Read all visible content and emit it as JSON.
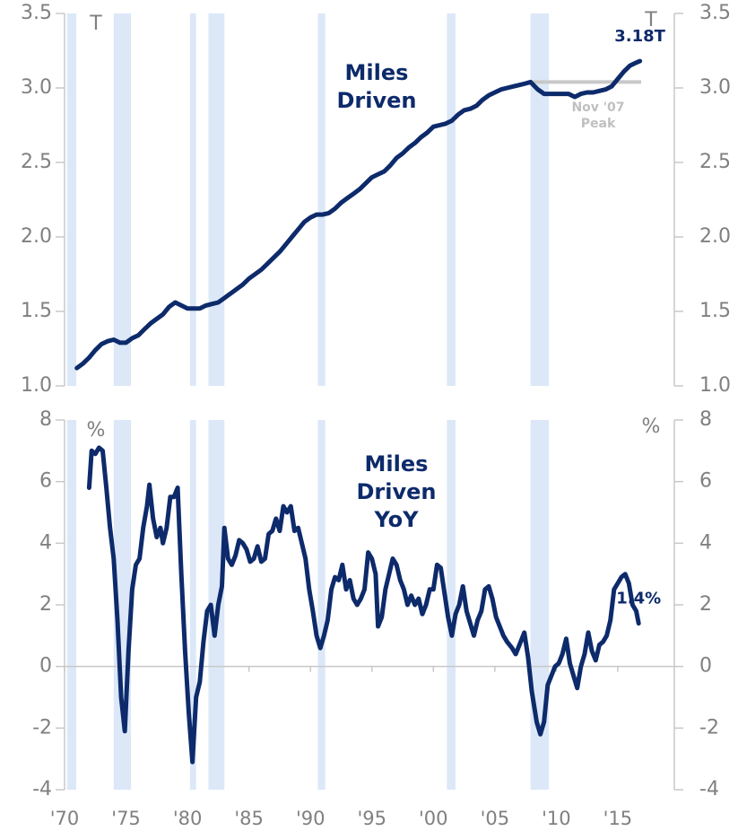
{
  "chart_data": [
    {
      "type": "line",
      "unit_label": "T",
      "xlim": [
        1970,
        2019.6
      ],
      "ylim": [
        1.0,
        3.5
      ],
      "yticks": [
        {
          "value": 1.0,
          "label": "1.0"
        },
        1.5,
        {
          "value": 2.0,
          "label": "2.0"
        },
        2.5,
        {
          "value": 3.0,
          "label": "3.0"
        },
        3.5
      ],
      "recessions": [
        [
          1970.2,
          1970.95
        ],
        [
          1974.0,
          1975.4
        ],
        [
          1980.2,
          1980.7
        ],
        [
          1981.7,
          1983.0
        ],
        [
          1990.6,
          1991.2
        ],
        [
          2001.1,
          2001.8
        ],
        [
          2007.9,
          2009.4
        ]
      ],
      "peak": {
        "label": "Nov '07 Peak",
        "value": 3.04,
        "x": [
          2007.9,
          2016.9
        ],
        "color": "#c8c8c8"
      },
      "series": [
        {
          "name": "Miles Driven",
          "color": "#0d2a6b",
          "end_label": "3.18T",
          "x": [
            1971,
            1971.5,
            1972,
            1972.5,
            1973,
            1973.5,
            1974,
            1974.5,
            1975,
            1975.5,
            1976,
            1976.5,
            1977,
            1977.5,
            1978,
            1978.5,
            1979,
            1979.5,
            1980,
            1980.5,
            1981,
            1981.5,
            1982,
            1982.5,
            1983,
            1983.5,
            1984,
            1984.5,
            1985,
            1985.5,
            1986,
            1986.5,
            1987,
            1987.5,
            1988,
            1988.5,
            1989,
            1989.5,
            1990,
            1990.5,
            1991,
            1991.5,
            1992,
            1992.5,
            1993,
            1993.5,
            1994,
            1994.5,
            1995,
            1995.5,
            1996,
            1996.5,
            1997,
            1997.5,
            1998,
            1998.5,
            1999,
            1999.5,
            2000,
            2000.5,
            2001,
            2001.5,
            2002,
            2002.5,
            2003,
            2003.5,
            2004,
            2004.5,
            2005,
            2005.5,
            2006,
            2006.5,
            2007,
            2007.5,
            2007.9,
            2008.5,
            2009,
            2009.5,
            2010,
            2010.5,
            2011,
            2011.5,
            2012,
            2012.5,
            2013,
            2013.5,
            2014,
            2014.5,
            2015,
            2015.5,
            2016,
            2016.5,
            2016.8
          ],
          "values": [
            1.12,
            1.15,
            1.19,
            1.24,
            1.28,
            1.3,
            1.31,
            1.29,
            1.29,
            1.32,
            1.34,
            1.38,
            1.42,
            1.45,
            1.48,
            1.53,
            1.56,
            1.54,
            1.52,
            1.52,
            1.52,
            1.54,
            1.55,
            1.56,
            1.59,
            1.62,
            1.65,
            1.68,
            1.72,
            1.75,
            1.78,
            1.82,
            1.86,
            1.9,
            1.95,
            2.0,
            2.05,
            2.1,
            2.13,
            2.15,
            2.15,
            2.16,
            2.19,
            2.23,
            2.26,
            2.29,
            2.32,
            2.36,
            2.4,
            2.42,
            2.44,
            2.48,
            2.53,
            2.56,
            2.6,
            2.63,
            2.67,
            2.7,
            2.74,
            2.75,
            2.76,
            2.78,
            2.82,
            2.85,
            2.86,
            2.88,
            2.92,
            2.95,
            2.97,
            2.99,
            3.0,
            3.01,
            3.02,
            3.03,
            3.04,
            2.99,
            2.96,
            2.96,
            2.96,
            2.96,
            2.96,
            2.94,
            2.96,
            2.97,
            2.97,
            2.98,
            2.99,
            3.01,
            3.06,
            3.11,
            3.15,
            3.17,
            3.18
          ]
        }
      ]
    },
    {
      "type": "line",
      "unit_label": "%",
      "xlim": [
        1970,
        2019.6
      ],
      "ylim": [
        -4,
        8
      ],
      "yticks": [
        -4,
        -2,
        0,
        2,
        4,
        6,
        8
      ],
      "xticks": [
        {
          "value": 1970,
          "label": "'70"
        },
        {
          "value": 1975,
          "label": "'75"
        },
        {
          "value": 1980,
          "label": "'80"
        },
        {
          "value": 1985,
          "label": "'85"
        },
        {
          "value": 1990,
          "label": "'90"
        },
        {
          "value": 1995,
          "label": "'95"
        },
        {
          "value": 2000,
          "label": "'00"
        },
        {
          "value": 2005,
          "label": "'05"
        },
        {
          "value": 2010,
          "label": "'10"
        },
        {
          "value": 2015,
          "label": "'15"
        }
      ],
      "recessions": [
        [
          1970.2,
          1970.95
        ],
        [
          1974.0,
          1975.4
        ],
        [
          1980.2,
          1980.7
        ],
        [
          1981.7,
          1983.0
        ],
        [
          1990.6,
          1991.2
        ],
        [
          2001.1,
          2001.8
        ],
        [
          2007.9,
          2009.4
        ]
      ],
      "series": [
        {
          "name": "Miles Driven YoY",
          "color": "#0d2a6b",
          "end_label": "1.4%",
          "x": [
            1972.0,
            1972.2,
            1972.5,
            1972.8,
            1973.1,
            1973.4,
            1973.7,
            1974.0,
            1974.3,
            1974.6,
            1974.9,
            1975.2,
            1975.5,
            1975.8,
            1976.1,
            1976.4,
            1976.7,
            1976.9,
            1977.2,
            1977.5,
            1977.8,
            1978.0,
            1978.3,
            1978.6,
            1978.9,
            1979.2,
            1979.5,
            1979.8,
            1980.1,
            1980.4,
            1980.7,
            1981.0,
            1981.3,
            1981.6,
            1981.9,
            1982.2,
            1982.5,
            1982.8,
            1983.0,
            1983.3,
            1983.6,
            1983.9,
            1984.2,
            1984.5,
            1984.8,
            1985.1,
            1985.4,
            1985.7,
            1986.0,
            1986.3,
            1986.6,
            1986.9,
            1987.2,
            1987.5,
            1987.8,
            1988.1,
            1988.4,
            1988.7,
            1989.0,
            1989.3,
            1989.6,
            1989.9,
            1990.2,
            1990.5,
            1990.8,
            1991.1,
            1991.4,
            1991.7,
            1992.0,
            1992.3,
            1992.6,
            1992.9,
            1993.2,
            1993.5,
            1993.8,
            1994.1,
            1994.4,
            1994.7,
            1995.0,
            1995.3,
            1995.5,
            1995.8,
            1996.1,
            1996.4,
            1996.7,
            1997.0,
            1997.3,
            1997.6,
            1997.9,
            1998.2,
            1998.5,
            1998.8,
            1999.1,
            1999.4,
            1999.7,
            2000.0,
            2000.3,
            2000.6,
            2000.9,
            2001.2,
            2001.5,
            2001.8,
            2002.1,
            2002.4,
            2002.7,
            2003.0,
            2003.3,
            2003.6,
            2003.9,
            2004.2,
            2004.5,
            2004.8,
            2005.1,
            2005.4,
            2005.7,
            2006.0,
            2006.4,
            2006.7,
            2007.0,
            2007.4,
            2007.7,
            2008.0,
            2008.4,
            2008.7,
            2009.0,
            2009.3,
            2009.6,
            2009.9,
            2010.2,
            2010.5,
            2010.8,
            2011.1,
            2011.4,
            2011.7,
            2012.0,
            2012.3,
            2012.6,
            2012.9,
            2013.2,
            2013.5,
            2013.8,
            2014.1,
            2014.4,
            2014.7,
            2015.0,
            2015.3,
            2015.6,
            2015.9,
            2016.2,
            2016.5,
            2016.7
          ],
          "values": [
            5.8,
            7.0,
            6.9,
            7.1,
            7.0,
            5.8,
            4.5,
            3.5,
            1.5,
            -1.0,
            -2.1,
            0.5,
            2.5,
            3.3,
            3.5,
            4.5,
            5.2,
            5.9,
            4.8,
            4.2,
            4.5,
            4.0,
            4.5,
            5.5,
            5.5,
            5.8,
            3.0,
            0.5,
            -1.5,
            -3.1,
            -1.0,
            -0.5,
            0.8,
            1.8,
            2.0,
            1.0,
            2.0,
            2.6,
            4.5,
            3.5,
            3.3,
            3.6,
            4.1,
            4.0,
            3.8,
            3.4,
            3.5,
            3.9,
            3.4,
            3.5,
            4.3,
            4.4,
            4.8,
            4.4,
            5.2,
            5.0,
            5.2,
            4.4,
            4.5,
            4.0,
            3.5,
            2.5,
            1.8,
            1.0,
            0.6,
            1.0,
            1.5,
            2.5,
            2.9,
            2.8,
            3.3,
            2.5,
            2.8,
            2.2,
            2.0,
            2.2,
            2.5,
            3.7,
            3.5,
            3.0,
            1.3,
            1.6,
            2.5,
            3.0,
            3.5,
            3.3,
            2.8,
            2.5,
            2.0,
            2.3,
            2.0,
            2.2,
            1.7,
            2.0,
            2.5,
            2.5,
            3.3,
            3.2,
            2.4,
            1.6,
            1.0,
            1.7,
            2.0,
            2.6,
            1.8,
            1.4,
            1.0,
            1.5,
            1.8,
            2.5,
            2.6,
            2.2,
            1.6,
            1.3,
            1.0,
            0.8,
            0.6,
            0.4,
            0.7,
            1.1,
            0.3,
            -0.8,
            -1.8,
            -2.2,
            -1.8,
            -0.6,
            -0.3,
            0.0,
            0.1,
            0.4,
            0.9,
            0.1,
            -0.3,
            -0.7,
            0.0,
            0.4,
            1.1,
            0.5,
            0.2,
            0.7,
            0.8,
            1.0,
            1.5,
            2.5,
            2.7,
            2.9,
            3.0,
            2.7,
            2.0,
            1.8,
            1.4
          ]
        }
      ]
    }
  ]
}
